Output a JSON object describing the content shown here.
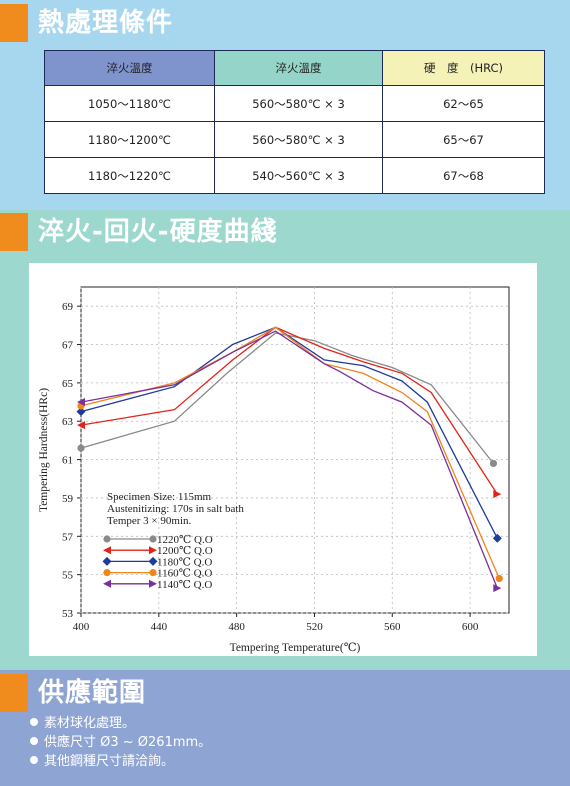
{
  "section1": {
    "title": "熱處理條件",
    "table": {
      "headers": [
        "淬火溫度",
        "淬火溫度",
        "硬　度　(HRC)"
      ],
      "rows": [
        [
          "1050～1180℃",
          "560～580℃ × 3",
          "62～65"
        ],
        [
          "1180～1200℃",
          "560～580℃ × 3",
          "65～67"
        ],
        [
          "1180～1220℃",
          "540～560℃ × 3",
          "67～68"
        ]
      ]
    }
  },
  "section2": {
    "title": "淬火-回火-硬度曲綫"
  },
  "chart_data": {
    "type": "line",
    "xlabel": "Tempering Temperature(℃)",
    "ylabel": "Tempering Hardness(HRc)",
    "xlim": [
      400,
      620
    ],
    "ylim": [
      53,
      70
    ],
    "xticks": [
      "400",
      "440",
      "480",
      "520",
      "560",
      "600"
    ],
    "yticks": [
      "53",
      "55",
      "57",
      "59",
      "61",
      "63",
      "65",
      "67",
      "69"
    ],
    "annotations": [
      "Specimen Size:  115mm",
      "Austenitizing:  170s in salt bath",
      "Temper 3 × 90min."
    ],
    "series": [
      {
        "name": "1220℃  Q.O",
        "color": "#8a8a8a",
        "marker": "circle",
        "x": [
          400,
          448,
          475,
          500,
          520,
          540,
          560,
          580,
          612
        ],
        "y": [
          61.6,
          63.0,
          65.5,
          67.6,
          67.2,
          66.4,
          65.8,
          64.9,
          60.8
        ]
      },
      {
        "name": "1200℃  Q.O",
        "color": "#e2231a",
        "marker": "arrow",
        "x": [
          400,
          448,
          478,
          500,
          525,
          545,
          565,
          580,
          614
        ],
        "y": [
          62.8,
          63.6,
          66.2,
          67.9,
          66.8,
          66.1,
          65.5,
          64.5,
          59.2
        ]
      },
      {
        "name": "1180℃  Q.O",
        "color": "#1e3b9e",
        "marker": "diamond",
        "x": [
          400,
          448,
          478,
          500,
          525,
          545,
          565,
          578,
          614
        ],
        "y": [
          63.5,
          64.8,
          67.0,
          67.9,
          66.2,
          65.9,
          65.1,
          64.0,
          56.9
        ]
      },
      {
        "name": "1160℃  Q.O",
        "color": "#f0851c",
        "marker": "circle",
        "x": [
          400,
          448,
          478,
          500,
          525,
          545,
          565,
          578,
          615
        ],
        "y": [
          63.8,
          65.0,
          66.6,
          67.9,
          66.0,
          65.5,
          64.5,
          63.5,
          54.8
        ]
      },
      {
        "name": "1140℃  Q.O",
        "color": "#7a2f9d",
        "marker": "arrow",
        "x": [
          400,
          448,
          478,
          500,
          525,
          533,
          550,
          565,
          580,
          614
        ],
        "y": [
          64.0,
          64.9,
          66.6,
          67.7,
          66.0,
          65.6,
          64.6,
          64.0,
          62.8,
          54.3
        ]
      }
    ]
  },
  "section3": {
    "title": "供應範圍",
    "items": [
      "素材球化處理。",
      "供應尺寸 Ø3 ~ Ø261mm。",
      "其他鋼種尺寸請洽詢。"
    ]
  },
  "colors": {
    "orange_accent": "#f08c1e",
    "section1_bg": "#a7d7ef",
    "section2_bg": "#9cd8ce",
    "section3_bg": "#8ea4d3"
  }
}
